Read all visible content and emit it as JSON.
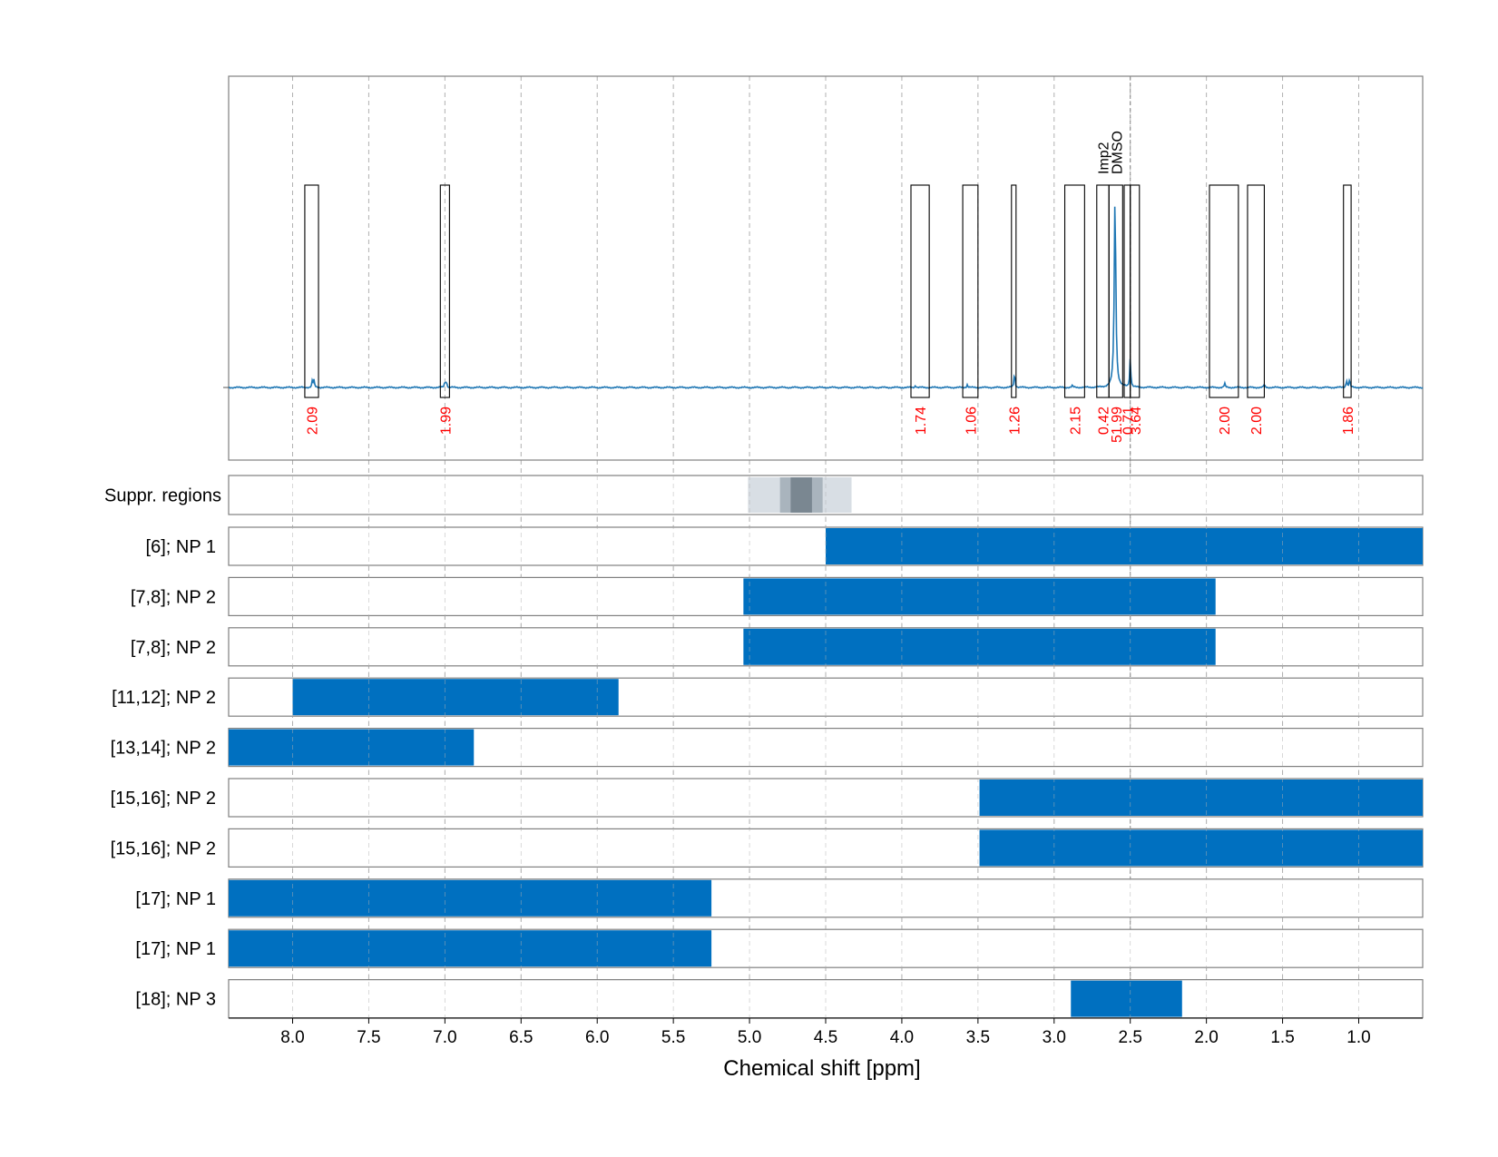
{
  "chart_data": {
    "type": "nmr-spectrum-with-range-tracks",
    "xlabel": "Chemical shift [ppm]",
    "xlim": [
      8.42,
      0.58
    ],
    "x_reversed": true,
    "x_ticks": [
      8.0,
      7.5,
      7.0,
      6.5,
      6.0,
      5.5,
      5.0,
      4.5,
      4.0,
      3.5,
      3.0,
      2.5,
      2.0,
      1.5,
      1.0
    ],
    "x_tick_labels": [
      "8.0",
      "7.5",
      "7.0",
      "6.5",
      "6.0",
      "5.5",
      "5.0",
      "4.5",
      "4.0",
      "3.5",
      "3.0",
      "2.5",
      "2.0",
      "1.5",
      "1.0"
    ],
    "grid": true,
    "colors": {
      "spectrum": "#1f77b4",
      "bar": "#0070c0",
      "integral_label": "#ff0000",
      "grid": "#b0b0b0",
      "frame": "#808080",
      "suppr_light": "#d8dee4",
      "suppr_mid": "#a9b4bd",
      "suppr_dark": "#7a8791"
    },
    "spectrum": {
      "baseline_level": 0.0,
      "peaks": [
        {
          "ppm": 7.87,
          "height": 0.035
        },
        {
          "ppm": 7.86,
          "height": 0.035
        },
        {
          "ppm": 7.0,
          "height": 0.03
        },
        {
          "ppm": 6.99,
          "height": 0.03
        },
        {
          "ppm": 3.91,
          "height": 0.012
        },
        {
          "ppm": 3.57,
          "height": 0.015
        },
        {
          "ppm": 3.26,
          "height": 0.08
        },
        {
          "ppm": 2.88,
          "height": 0.01
        },
        {
          "ppm": 2.6,
          "height": 1.0
        },
        {
          "ppm": 2.5,
          "height": 0.15
        },
        {
          "ppm": 1.88,
          "height": 0.02
        },
        {
          "ppm": 1.62,
          "height": 0.015
        },
        {
          "ppm": 1.08,
          "height": 0.04
        },
        {
          "ppm": 1.06,
          "height": 0.04
        }
      ],
      "integral_boxes": [
        {
          "from": 7.92,
          "to": 7.83,
          "label": "2.09"
        },
        {
          "from": 7.03,
          "to": 6.97,
          "label": "1.99"
        },
        {
          "from": 3.94,
          "to": 3.82,
          "label": "1.74"
        },
        {
          "from": 3.6,
          "to": 3.5,
          "label": "1.06"
        },
        {
          "from": 3.28,
          "to": 3.25,
          "label": "1.26"
        },
        {
          "from": 2.93,
          "to": 2.8,
          "label": "2.15"
        },
        {
          "from": 2.72,
          "to": 2.64,
          "label": "0.42"
        },
        {
          "from": 2.64,
          "to": 2.55,
          "label": "51.99"
        },
        {
          "from": 2.54,
          "to": 2.5,
          "label": "0.71"
        },
        {
          "from": 2.5,
          "to": 2.44,
          "label": "3.64"
        },
        {
          "from": 1.98,
          "to": 1.79,
          "label": "2.00"
        },
        {
          "from": 1.73,
          "to": 1.62,
          "label": "2.00"
        },
        {
          "from": 1.1,
          "to": 1.05,
          "label": "1.86"
        }
      ],
      "annotations": [
        {
          "ppm": 2.68,
          "text": "Imp2"
        },
        {
          "ppm": 2.59,
          "text": "DMSO"
        }
      ],
      "dashed_marker_ppm": 2.5
    },
    "suppressed_regions": {
      "label": "Suppr. regions",
      "bands": [
        {
          "from": 5.01,
          "to": 4.33,
          "shade": "light"
        },
        {
          "from": 4.8,
          "to": 4.52,
          "shade": "mid"
        },
        {
          "from": 4.73,
          "to": 4.59,
          "shade": "dark"
        }
      ]
    },
    "tracks": [
      {
        "label": "[6]; NP 1",
        "from": 4.5,
        "to": 0.58
      },
      {
        "label": "[7,8]; NP 2",
        "from": 5.04,
        "to": 1.94
      },
      {
        "label": "[7,8]; NP 2",
        "from": 5.04,
        "to": 1.94
      },
      {
        "label": "[11,12]; NP 2",
        "from": 8.0,
        "to": 5.86
      },
      {
        "label": "[13,14]; NP 2",
        "from": 8.42,
        "to": 6.81
      },
      {
        "label": "[15,16]; NP 2",
        "from": 3.49,
        "to": 0.58
      },
      {
        "label": "[15,16]; NP 2",
        "from": 3.49,
        "to": 0.58
      },
      {
        "label": "[17]; NP 1",
        "from": 8.42,
        "to": 5.25
      },
      {
        "label": "[17]; NP 1",
        "from": 8.42,
        "to": 5.25
      },
      {
        "label": "[18]; NP 3",
        "from": 2.89,
        "to": 2.16
      }
    ]
  }
}
